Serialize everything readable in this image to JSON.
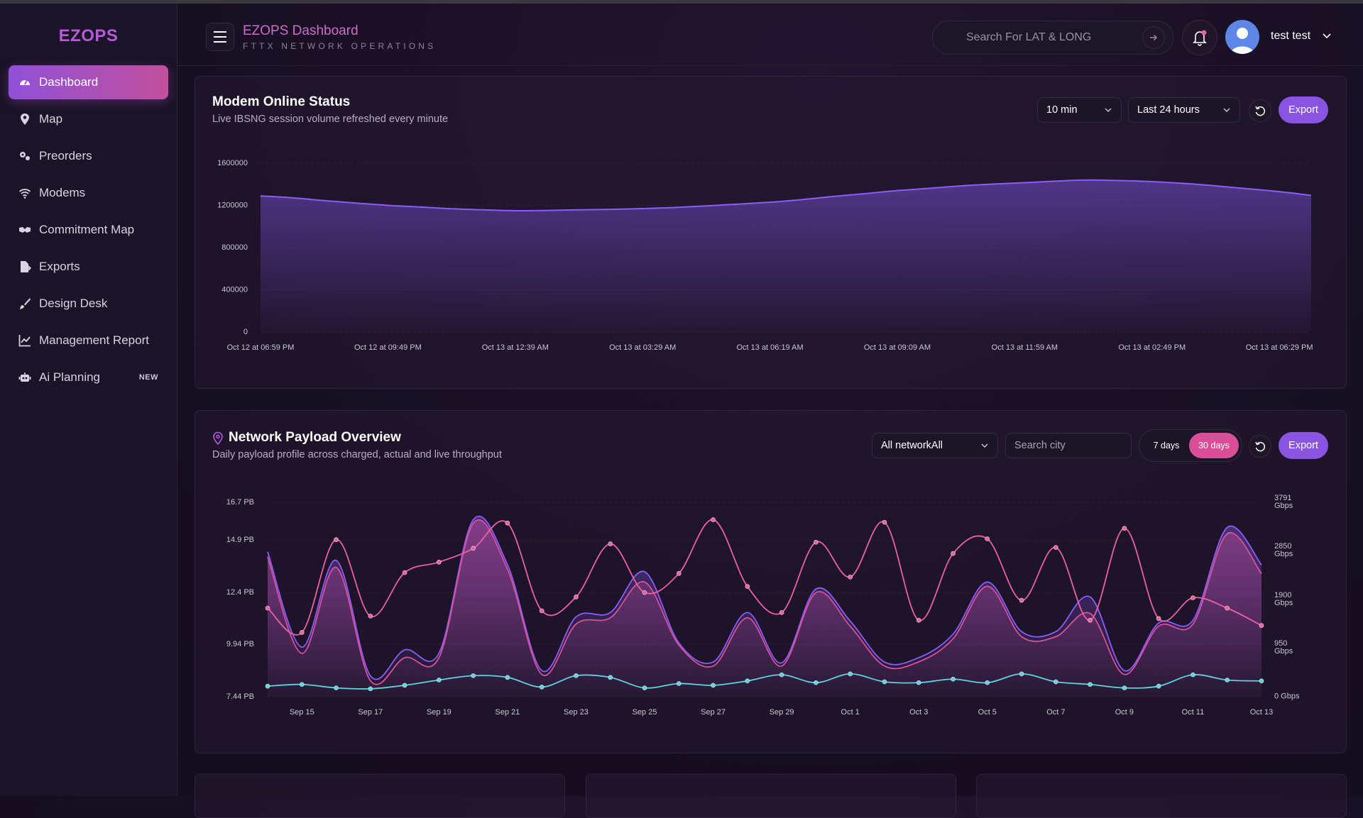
{
  "sidebar": {
    "logo": "EZOPS",
    "nav": [
      {
        "label": "Dashboard"
      },
      {
        "label": "Map"
      },
      {
        "label": "Preorders"
      },
      {
        "label": "Modems"
      },
      {
        "label": "Commitment Map"
      },
      {
        "label": "Exports"
      },
      {
        "label": "Design Desk"
      },
      {
        "label": "Management Report"
      },
      {
        "label": "Ai Planning",
        "badge": "NEW"
      }
    ]
  },
  "header": {
    "title": "EZOPS Dashboard",
    "subtitle": "FTTX NETWORK OPERATIONS",
    "search_placeholder": "Search For LAT & LONG",
    "user": "test test"
  },
  "panels": [
    {
      "title": "Modem Online Status",
      "subtitle": "Live IBSNG session volume refreshed every minute",
      "controls": {
        "interval": "10 min",
        "range": "Last 24 hours",
        "export": "Export"
      }
    },
    {
      "title": "Network Payload Overview",
      "subtitle": "Daily payload profile across charged, actual and live throughput",
      "controls": {
        "network": "All networkAll",
        "city_placeholder": "Search city",
        "ranges": [
          "7 days",
          "30 days"
        ],
        "export": "Export"
      }
    }
  ],
  "chart_data": [
    {
      "type": "area",
      "categories": [
        "Oct 12 at 06:59 PM",
        null,
        null,
        null,
        "Oct 12 at 09:49 PM",
        null,
        null,
        null,
        "Oct 13 at 12:39 AM",
        null,
        null,
        null,
        "Oct 13 at 03:29 AM",
        null,
        null,
        null,
        "Oct 13 at 06:19 AM",
        null,
        null,
        null,
        "Oct 13 at 09:09 AM",
        null,
        null,
        null,
        "Oct 13 at 11:59 AM",
        null,
        null,
        null,
        "Oct 13 at 02:49 PM",
        null,
        null,
        null,
        "Oct 13 at 06:29 PM",
        null
      ],
      "values": [
        1290000,
        1272000,
        1245000,
        1222000,
        1200000,
        1185000,
        1168000,
        1158000,
        1150000,
        1152000,
        1158000,
        1162000,
        1170000,
        1180000,
        1195000,
        1212000,
        1230000,
        1255000,
        1285000,
        1312000,
        1340000,
        1362000,
        1385000,
        1402000,
        1415000,
        1430000,
        1440000,
        1435000,
        1425000,
        1408000,
        1385000,
        1358000,
        1330000,
        1295000
      ],
      "color": "#8b5cf6",
      "ylim": [
        0,
        1600000
      ],
      "yticks": [
        0,
        400000,
        800000,
        1200000,
        1600000
      ],
      "grid": true
    },
    {
      "type": "line",
      "categories": [
        null,
        "Sep 15",
        null,
        "Sep 17",
        null,
        "Sep 19",
        null,
        "Sep 21",
        null,
        "Sep 23",
        null,
        "Sep 25",
        null,
        "Sep 27",
        null,
        "Sep 29",
        null,
        "Oct 1",
        null,
        "Oct 3",
        null,
        "Oct 5",
        null,
        "Oct 7",
        null,
        "Oct 9",
        null,
        "Oct 11",
        null,
        "Oct 13"
      ],
      "series": [
        {
          "color": "#8b5cf6",
          "area": true,
          "values": [
            14.34,
            9.8,
            13.93,
            8.43,
            9.67,
            9.51,
            15.87,
            13.72,
            8.68,
            11.24,
            11.45,
            13.39,
            10.0,
            9.09,
            11.45,
            9.05,
            12.57,
            11.04,
            9.09,
            9.3,
            10.42,
            12.9,
            10.54,
            10.54,
            12.19,
            8.68,
            10.95,
            11.08,
            15.5,
            13.72
          ]
        },
        {
          "color": "#d9509a",
          "area": true,
          "values": [
            14.1,
            9.5,
            13.6,
            8.2,
            9.3,
            9.3,
            15.7,
            13.5,
            8.5,
            10.9,
            11.2,
            12.9,
            9.9,
            8.9,
            11.2,
            8.9,
            12.4,
            10.8,
            8.9,
            9.1,
            10.2,
            12.7,
            10.3,
            10.3,
            11.4,
            8.5,
            10.8,
            10.9,
            15.2,
            13.3
          ]
        },
        {
          "color": "#ec5fa2",
          "markers": true,
          "values": [
            11.66,
            10.5,
            14.92,
            11.28,
            13.35,
            13.85,
            14.51,
            15.71,
            11.53,
            12.19,
            14.72,
            12.4,
            13.31,
            15.87,
            12.69,
            11.45,
            14.8,
            13.14,
            15.75,
            11.08,
            14.26,
            14.96,
            12.03,
            14.55,
            11.08,
            15.46,
            11.16,
            12.15,
            11.66,
            10.83
          ]
        },
        {
          "color": "#5ed3dc",
          "markers": true,
          "axis": "y2",
          "values": [
            205,
            239,
            171,
            154,
            222,
            325,
            410,
            376,
            188,
            410,
            376,
            171,
            256,
            222,
            307,
            427,
            273,
            444,
            290,
            273,
            342,
            273,
            444,
            290,
            239,
            171,
            205,
            427,
            325,
            307
          ]
        }
      ],
      "ylim": [
        7.44,
        16.7
      ],
      "yticks": [
        {
          "value": 7.44,
          "label": "7.44 PB"
        },
        {
          "value": 9.94,
          "label": "9.94 PB"
        },
        {
          "value": 12.4,
          "label": "12.4 PB"
        },
        {
          "value": 14.9,
          "label": "14.9 PB"
        },
        {
          "value": 16.7,
          "label": "16.7 PB"
        }
      ],
      "y2lim": [
        0,
        3791
      ],
      "y2ticks": [
        {
          "value": 0,
          "label": "0 Gbps"
        },
        {
          "value": 950,
          "label": "950 Gbps"
        },
        {
          "value": 1900,
          "label": "1900 Gbps"
        },
        {
          "value": 2850,
          "label": "2850 Gbps"
        },
        {
          "value": 3791,
          "label": "3791 Gbps"
        }
      ],
      "grid": true
    }
  ]
}
